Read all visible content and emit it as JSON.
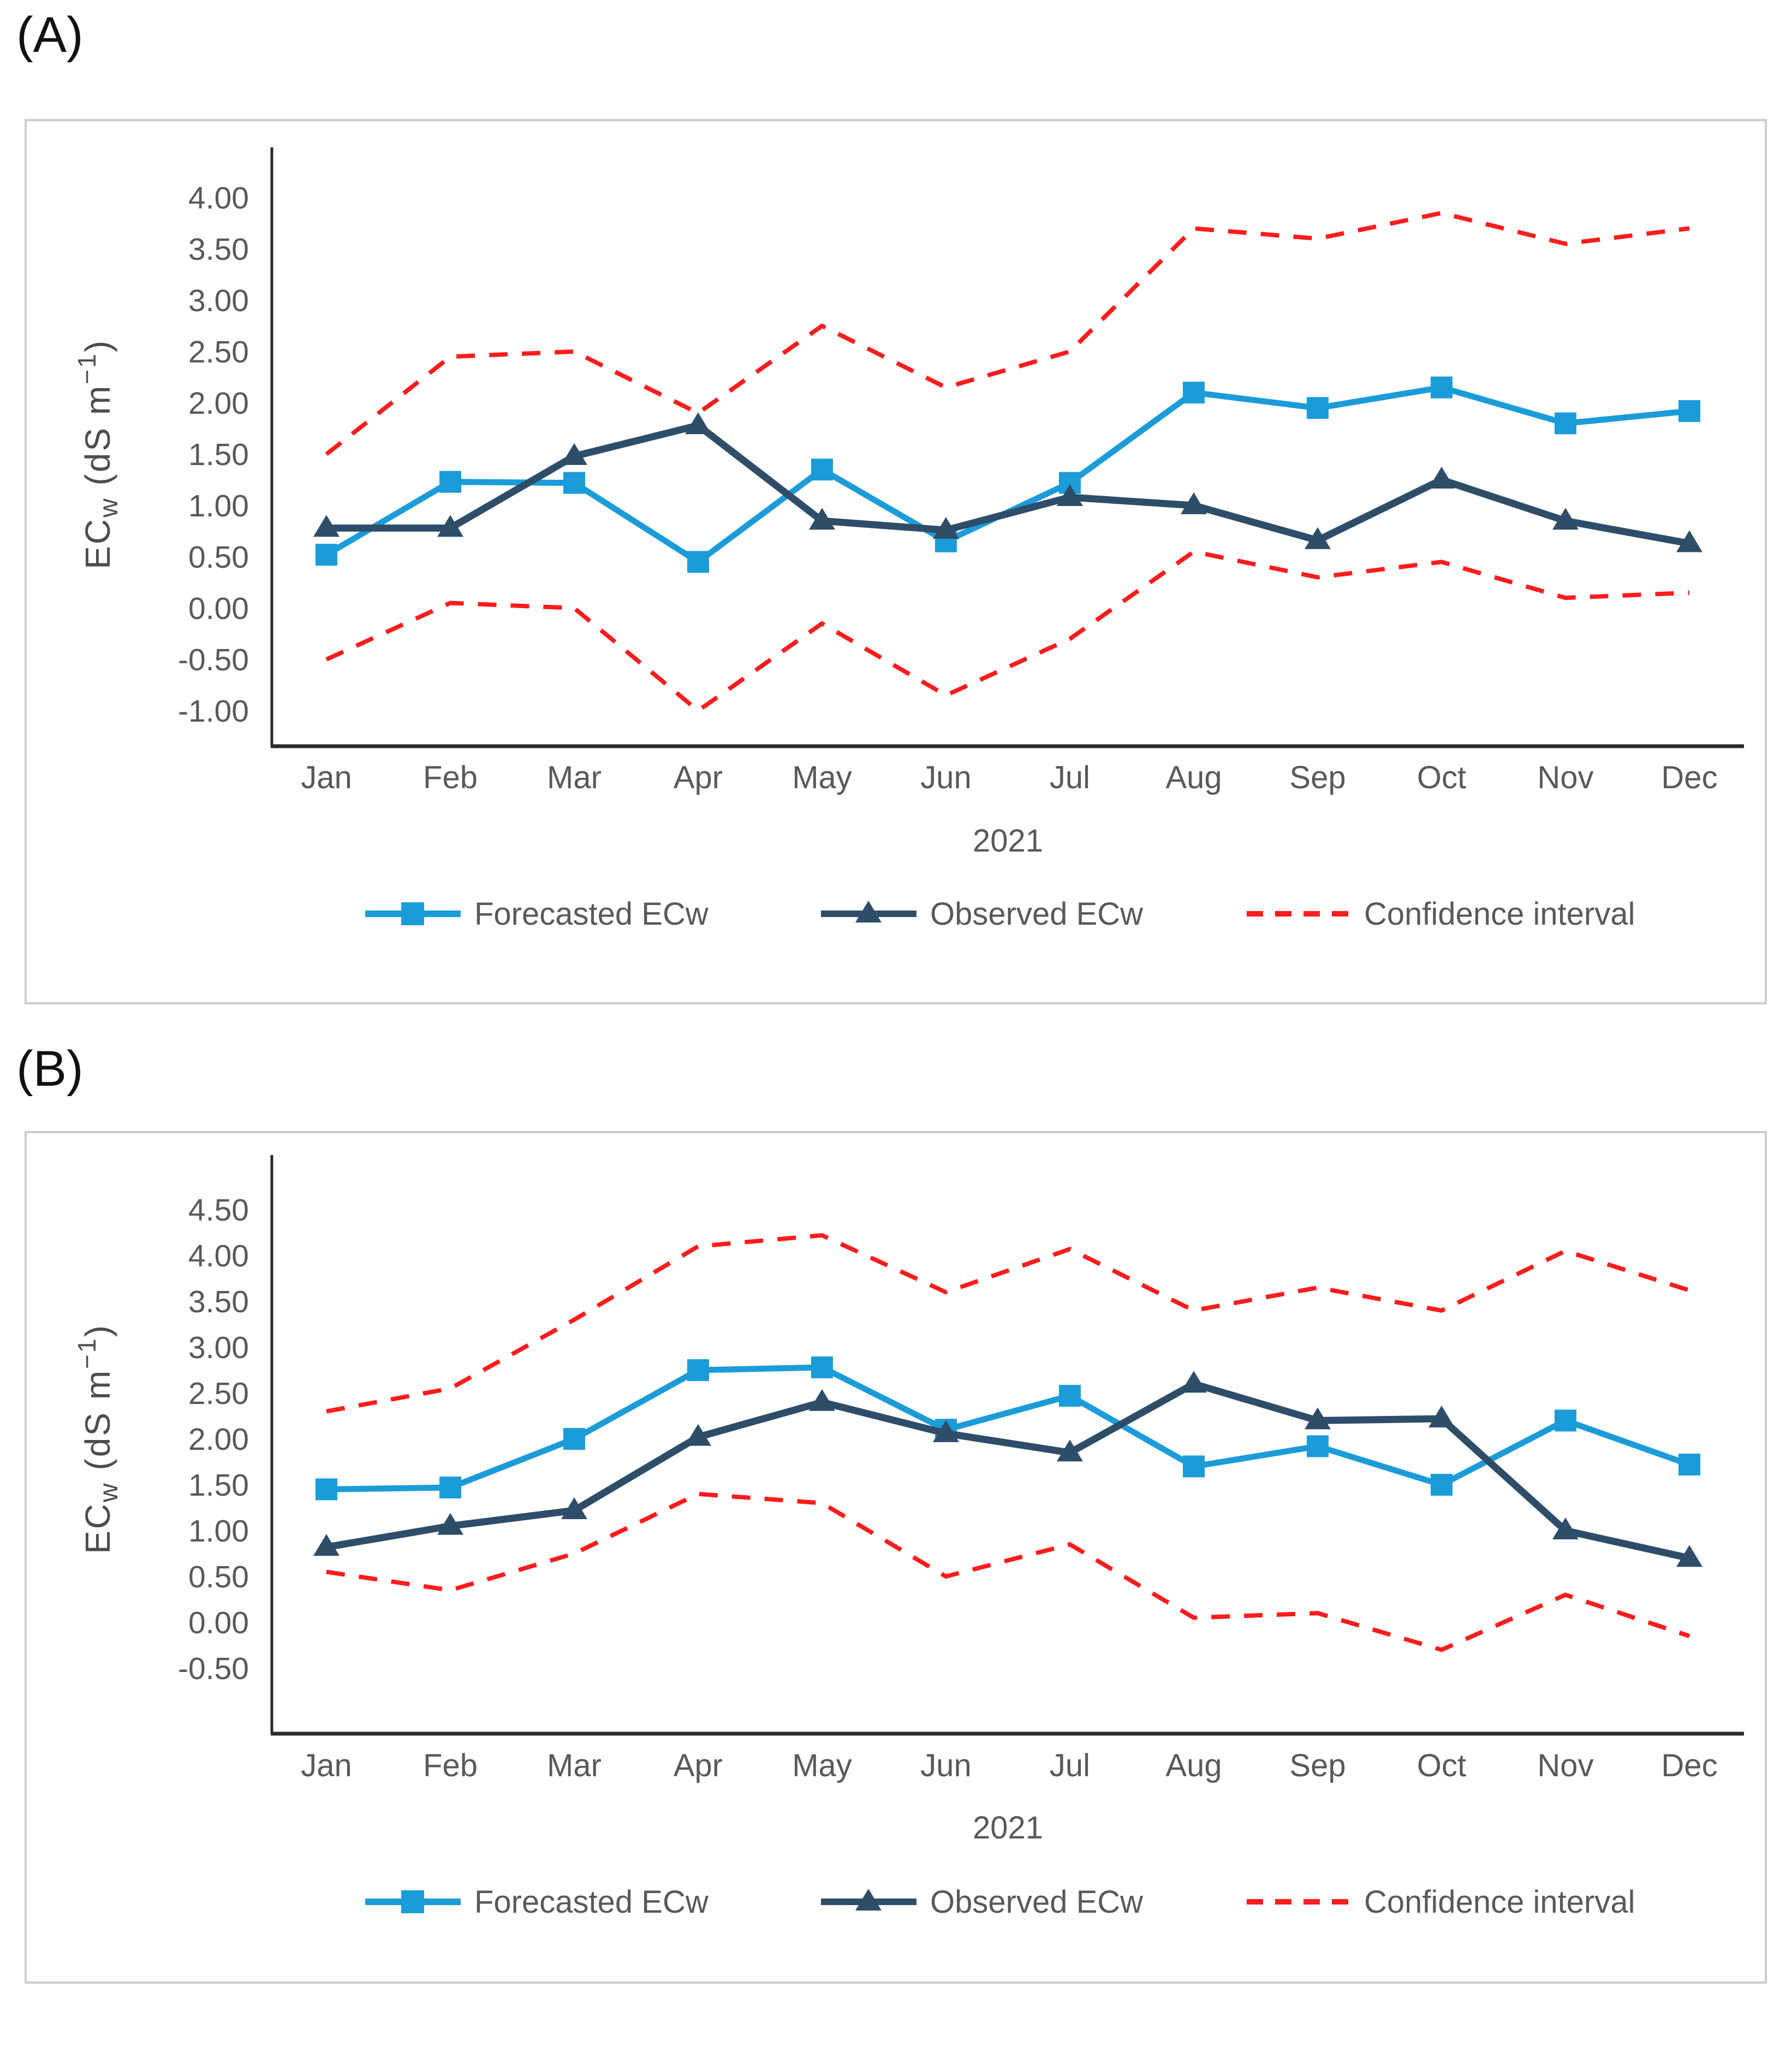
{
  "colors": {
    "forecasted": "#1b9cd9",
    "observed": "#2e4d69",
    "confidence": "#fb1d1d",
    "axis_line": "#2b2b2b",
    "tick_text": "#595959",
    "panel_border": "#cccccc",
    "panel_label": "#111111"
  },
  "panels": [
    {
      "label": "(A)"
    },
    {
      "label": "(B)"
    }
  ],
  "y_axis_title": {
    "prefix": "EC",
    "sub": "w",
    "mid": " (dS m",
    "sup": "−1",
    "suffix": ")"
  },
  "chart_data": [
    {
      "id": "A",
      "type": "line",
      "categories": [
        "Jan",
        "Feb",
        "Mar",
        "Apr",
        "May",
        "Jun",
        "Jul",
        "Aug",
        "Sep",
        "Oct",
        "Nov",
        "Dec"
      ],
      "xlabel": "2021",
      "ylabel": "ECw (dS m-1)",
      "y_tick_labels": [
        "4.00",
        "3.50",
        "3.00",
        "2.50",
        "2.00",
        "1.50",
        "1.00",
        "0.50",
        "0.00",
        "-0.50",
        "-1.00"
      ],
      "ylim": [
        -1.35,
        4.45
      ],
      "grid": false,
      "legend_position": "bottom",
      "series": [
        {
          "name": "Forecasted ECw",
          "role": "forecasted",
          "marker": "square",
          "values": [
            0.52,
            1.23,
            1.22,
            0.45,
            1.35,
            0.65,
            1.22,
            2.1,
            1.95,
            2.15,
            1.8,
            1.92
          ]
        },
        {
          "name": "Observed ECw",
          "role": "observed",
          "marker": "triangle",
          "values": [
            0.78,
            0.78,
            1.48,
            1.78,
            0.85,
            0.76,
            1.08,
            1.0,
            0.66,
            1.25,
            0.85,
            0.63
          ]
        },
        {
          "name": "Confidence interval",
          "role": "confidence",
          "marker": "dash",
          "upper": [
            1.5,
            2.45,
            2.5,
            1.9,
            2.75,
            2.15,
            2.5,
            3.7,
            3.6,
            3.85,
            3.55,
            3.7
          ],
          "lower": [
            -0.5,
            0.05,
            0.0,
            -1.0,
            -0.15,
            -0.85,
            -0.3,
            0.55,
            0.3,
            0.45,
            0.1,
            0.15
          ]
        }
      ]
    },
    {
      "id": "B",
      "type": "line",
      "categories": [
        "Jan",
        "Feb",
        "Mar",
        "Apr",
        "May",
        "Jun",
        "Jul",
        "Aug",
        "Sep",
        "Oct",
        "Nov",
        "Dec"
      ],
      "xlabel": "2021",
      "ylabel": "ECw (dS m-1)",
      "y_tick_labels": [
        "4.50",
        "4.00",
        "3.50",
        "3.00",
        "2.50",
        "2.00",
        "1.50",
        "1.00",
        "0.50",
        "0.00",
        "-0.50"
      ],
      "ylim": [
        -1.1,
        4.9
      ],
      "grid": false,
      "legend_position": "bottom",
      "series": [
        {
          "name": "Forecasted ECw",
          "role": "forecasted",
          "marker": "square",
          "values": [
            1.45,
            1.47,
            2.0,
            2.75,
            2.78,
            2.1,
            2.47,
            1.7,
            1.92,
            1.5,
            2.2,
            1.72
          ]
        },
        {
          "name": "Observed ECw",
          "role": "observed",
          "marker": "triangle",
          "values": [
            0.82,
            1.05,
            1.22,
            2.02,
            2.4,
            2.06,
            1.85,
            2.6,
            2.2,
            2.22,
            1.0,
            0.7
          ]
        },
        {
          "name": "Confidence interval",
          "role": "confidence",
          "marker": "dash",
          "upper": [
            2.3,
            2.55,
            3.3,
            4.1,
            4.22,
            3.6,
            4.07,
            3.4,
            3.65,
            3.4,
            4.05,
            3.62
          ],
          "lower": [
            0.55,
            0.35,
            0.75,
            1.4,
            1.3,
            0.5,
            0.85,
            0.05,
            0.1,
            -0.3,
            0.3,
            -0.15
          ]
        }
      ]
    }
  ]
}
